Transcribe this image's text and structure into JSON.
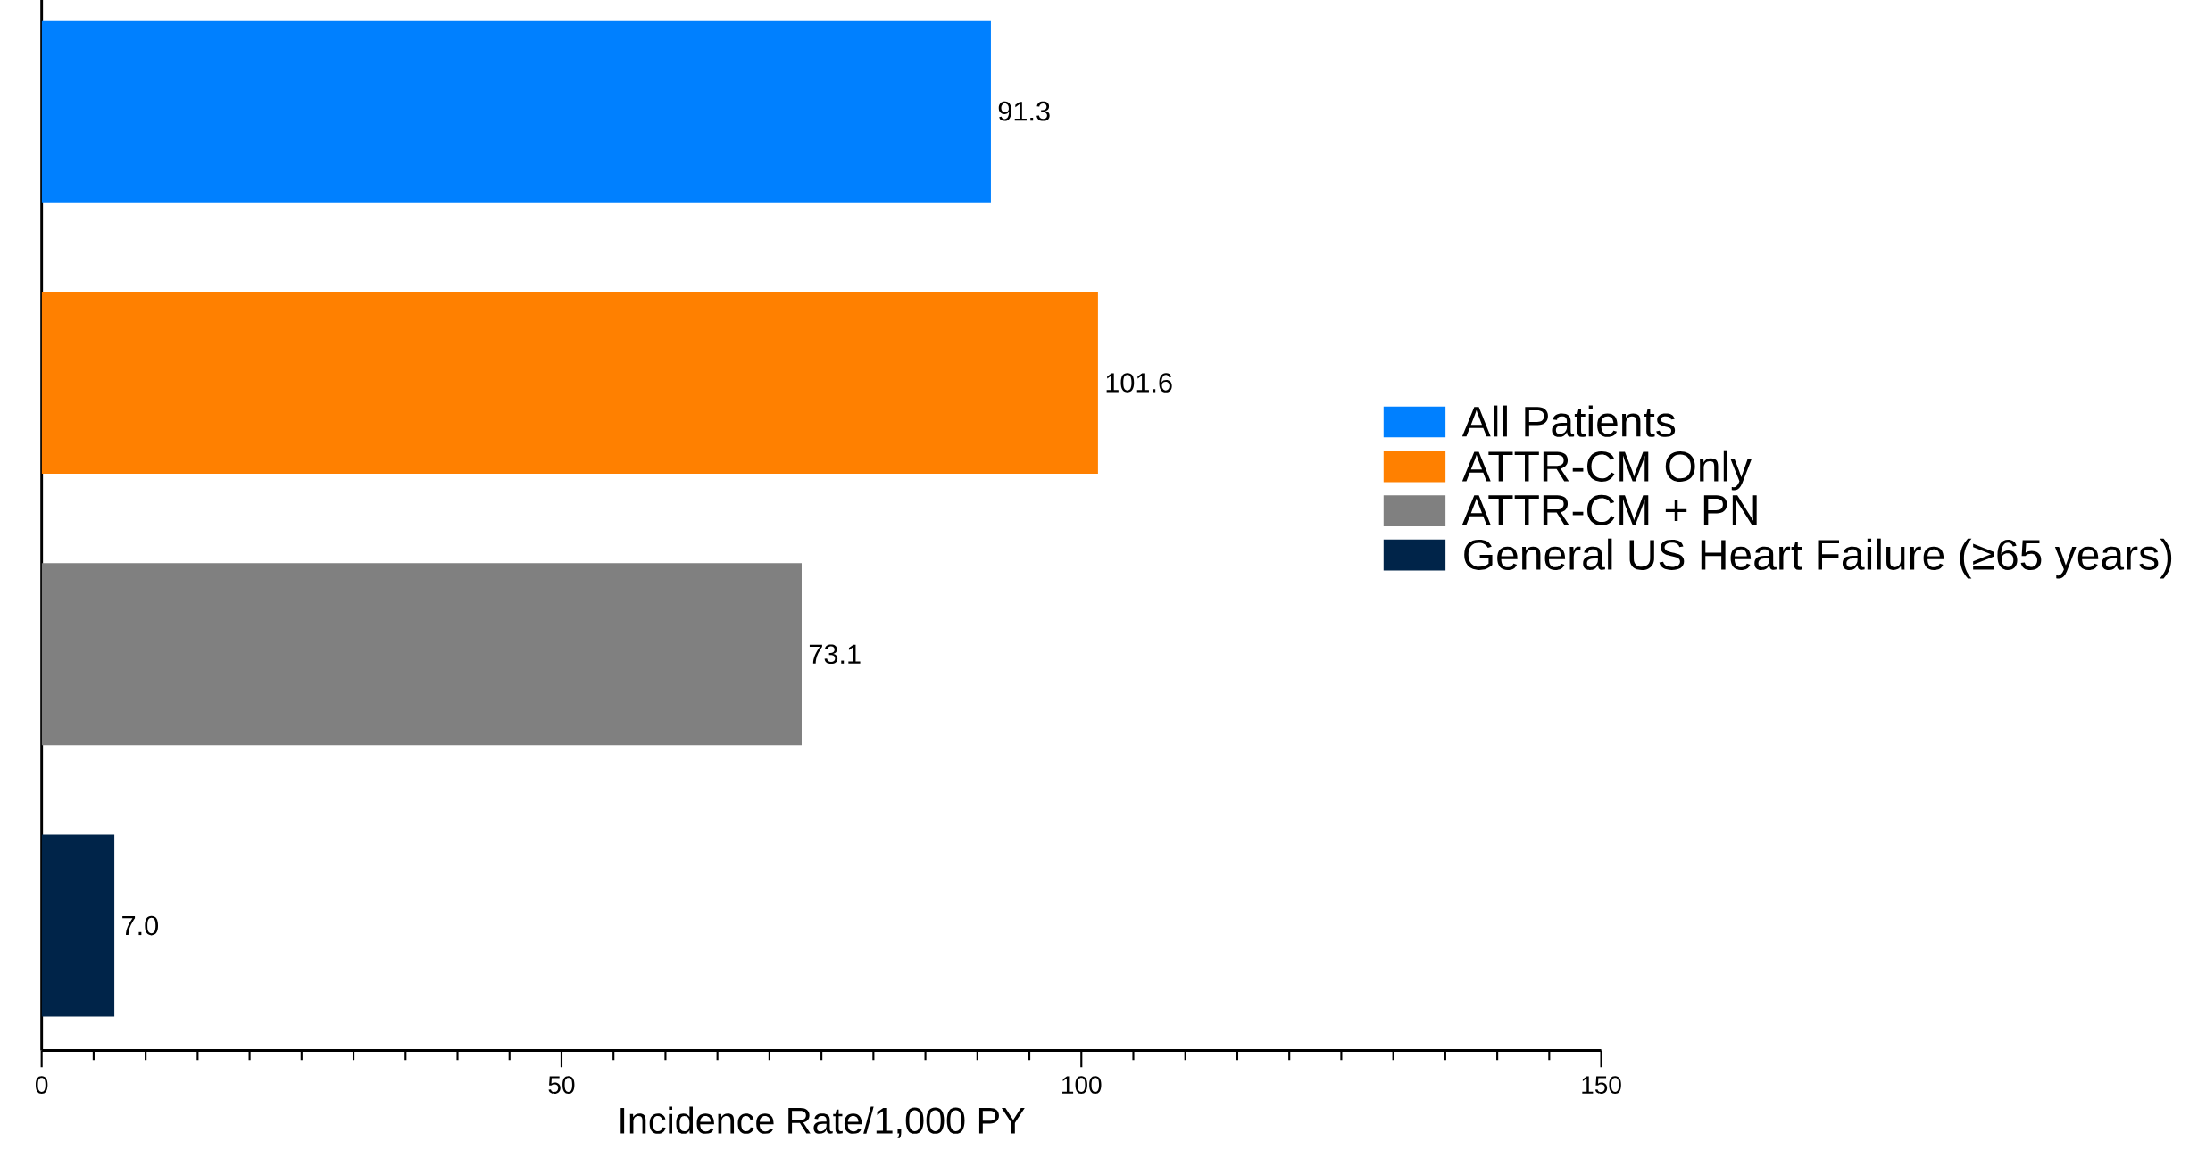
{
  "chart_data": {
    "type": "bar",
    "orientation": "horizontal",
    "xlabel": "Incidence Rate/1,000 PY",
    "categories": [
      null,
      null,
      null,
      null
    ],
    "series": [
      {
        "name": "All Patients",
        "color": "#0080ff",
        "values": [
          91.3,
          null,
          null,
          null
        ],
        "value_labels": [
          "91.3",
          null,
          null,
          null
        ]
      },
      {
        "name": "ATTR-CM Only",
        "color": "#ff8000",
        "values": [
          null,
          101.6,
          null,
          null
        ],
        "value_labels": [
          null,
          "101.6",
          null,
          null
        ]
      },
      {
        "name": "ATTR-CM + PN",
        "color": "#808080",
        "values": [
          null,
          null,
          73.1,
          null
        ],
        "value_labels": [
          null,
          null,
          "73.1",
          null
        ]
      },
      {
        "name": "General US Heart Failure (≥65 years)",
        "color": "#002449",
        "values": [
          null,
          null,
          null,
          7.0
        ],
        "value_labels": [
          null,
          null,
          null,
          "7.0"
        ]
      }
    ],
    "xlim": [
      0,
      150
    ],
    "xticks": [
      0,
      {
        "value": 5,
        "label": null
      },
      {
        "value": 10,
        "label": null
      },
      {
        "value": 15,
        "label": null
      },
      {
        "value": 20,
        "label": null
      },
      {
        "value": 25,
        "label": null
      },
      {
        "value": 30,
        "label": null
      },
      {
        "value": 35,
        "label": null
      },
      {
        "value": 40,
        "label": null
      },
      {
        "value": 45,
        "label": null
      },
      50,
      {
        "value": 55,
        "label": null
      },
      {
        "value": 60,
        "label": null
      },
      {
        "value": 65,
        "label": null
      },
      {
        "value": 70,
        "label": null
      },
      {
        "value": 75,
        "label": null
      },
      {
        "value": 80,
        "label": null
      },
      {
        "value": 85,
        "label": null
      },
      {
        "value": 90,
        "label": null
      },
      {
        "value": 95,
        "label": null
      },
      100,
      {
        "value": 105,
        "label": null
      },
      {
        "value": 110,
        "label": null
      },
      {
        "value": 115,
        "label": null
      },
      {
        "value": 120,
        "label": null
      },
      {
        "value": 125,
        "label": null
      },
      {
        "value": 130,
        "label": null
      },
      {
        "value": 135,
        "label": null
      },
      {
        "value": 140,
        "label": null
      },
      {
        "value": 145,
        "label": null
      },
      150
    ],
    "grid": false,
    "legend": "right"
  }
}
